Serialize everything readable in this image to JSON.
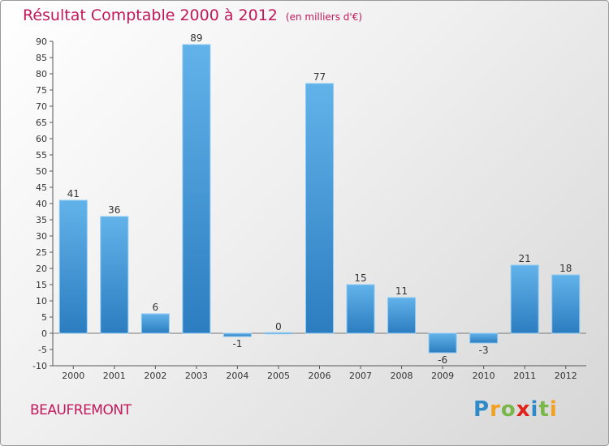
{
  "chart_data": {
    "type": "bar",
    "title": "Résultat Comptable 2000 à 2012",
    "subtitle": "(en milliers d'€)",
    "categories": [
      "2000",
      "2001",
      "2002",
      "2003",
      "2004",
      "2005",
      "2006",
      "2007",
      "2008",
      "2009",
      "2010",
      "2011",
      "2012"
    ],
    "values": [
      41,
      36,
      6,
      89,
      -1,
      0,
      77,
      15,
      11,
      -6,
      -3,
      21,
      18
    ],
    "data_labels": [
      "41",
      "36",
      "6",
      "89",
      "-1",
      "0",
      "77",
      "15",
      "11",
      "-6",
      "-3",
      "21",
      "18"
    ],
    "ylim": [
      -10,
      90
    ],
    "yticks": [
      -10,
      -5,
      0,
      5,
      10,
      15,
      20,
      25,
      30,
      35,
      40,
      45,
      50,
      55,
      60,
      65,
      70,
      75,
      80,
      85,
      90
    ],
    "xlabel": "",
    "ylabel": "",
    "grid": false,
    "colors": {
      "bar_light": "#62b2ea",
      "bar_dark": "#2c7dc0",
      "title": "#c2185b"
    }
  },
  "footer": {
    "commune": "BEAUFREMONT",
    "logo_letters": [
      {
        "char": "P",
        "color": "#2e8bc7"
      },
      {
        "char": "r",
        "color": "#f2a01e"
      },
      {
        "char": "o",
        "color": "#7ab648"
      },
      {
        "char": "x",
        "color": "#e2231a"
      },
      {
        "char": "i",
        "color": "#2e8bc7"
      },
      {
        "char": "t",
        "color": "#7ab648"
      },
      {
        "char": "i",
        "color": "#f2a01e"
      }
    ]
  }
}
